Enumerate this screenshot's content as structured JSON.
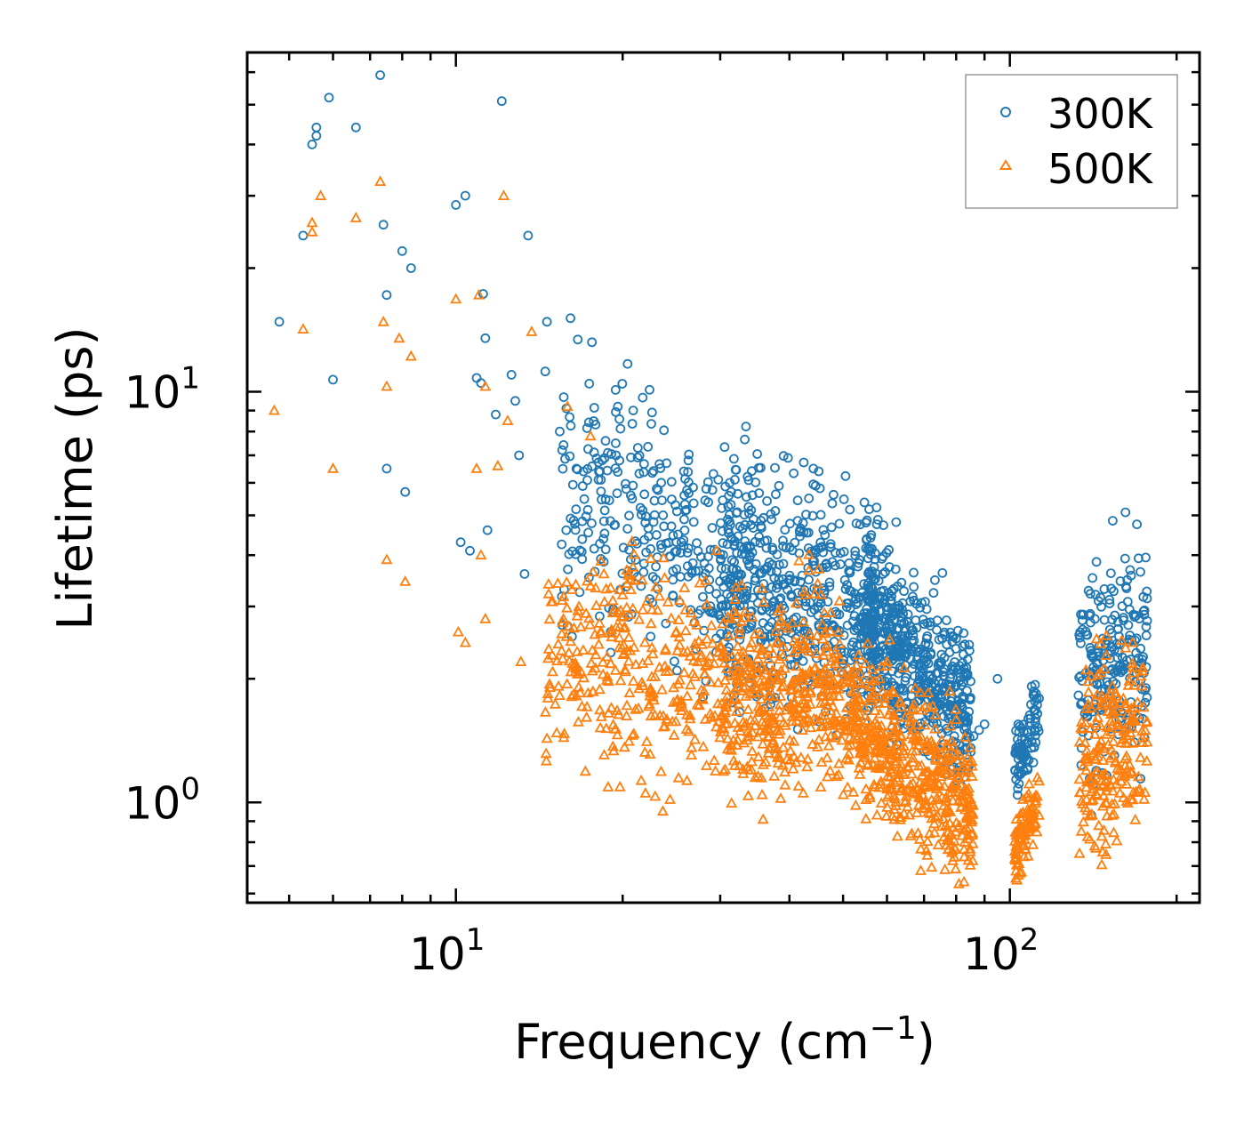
{
  "chart_data": {
    "type": "scatter",
    "xscale": "log",
    "yscale": "log",
    "xlim": [
      4.2,
      220
    ],
    "ylim": [
      0.57,
      67
    ],
    "xlabel": "Frequency (cm",
    "xlabel_sup": "−1",
    "xlabel_end": ")",
    "ylabel": "Lifetime (ps)",
    "x_ticks": [
      {
        "value": 10,
        "base": "10",
        "exp": "1"
      },
      {
        "value": 100,
        "base": "10",
        "exp": "2"
      }
    ],
    "y_ticks": [
      {
        "value": 1,
        "base": "10",
        "exp": "0"
      },
      {
        "value": 10,
        "base": "10",
        "exp": "1"
      }
    ],
    "legend_position": "top-right",
    "grid": false,
    "series": [
      {
        "name": "300K",
        "marker": "circle",
        "color": "#1f77b4",
        "points": [
          [
            4.8,
            14.8
          ],
          [
            5.5,
            40
          ],
          [
            5.6,
            44
          ],
          [
            5.6,
            42
          ],
          [
            5.3,
            24
          ],
          [
            5.9,
            52
          ],
          [
            6.0,
            10.7
          ],
          [
            6.6,
            44
          ],
          [
            7.3,
            59
          ],
          [
            7.4,
            25.5
          ],
          [
            7.5,
            17.2
          ],
          [
            7.5,
            6.5
          ],
          [
            8.0,
            22
          ],
          [
            8.1,
            5.7
          ],
          [
            8.3,
            20
          ],
          [
            10.0,
            28.5
          ],
          [
            10.4,
            30
          ],
          [
            10.6,
            4.1
          ],
          [
            10.2,
            4.3
          ],
          [
            10.9,
            10.8
          ],
          [
            11.1,
            10.5
          ],
          [
            11.2,
            17.3
          ],
          [
            11.3,
            13.5
          ],
          [
            11.4,
            4.6
          ],
          [
            11.8,
            8.8
          ],
          [
            12.1,
            51
          ],
          [
            12.6,
            11.0
          ],
          [
            12.8,
            9.5
          ],
          [
            13.0,
            7.0
          ],
          [
            13.5,
            24
          ],
          [
            13.3,
            3.6
          ],
          [
            14.5,
            11.2
          ],
          [
            14.6,
            14.8
          ],
          [
            15.4,
            8.0
          ],
          [
            16.1,
            15.1
          ],
          [
            16.5,
            6.5
          ],
          [
            16.6,
            13.4
          ],
          [
            17.6,
            13.2
          ],
          [
            18.2,
            6.4
          ],
          [
            18.8,
            7.1
          ],
          [
            19.6,
            9.2
          ],
          [
            20.9,
            9.0
          ],
          [
            21.3,
            7.3
          ],
          [
            22.6,
            8.9
          ],
          [
            24.0,
            6.7
          ],
          [
            25.8,
            6.4
          ],
          [
            28.3,
            5.8
          ],
          [
            31.2,
            6.0
          ],
          [
            34.3,
            5.6
          ],
          [
            38.3,
            5.9
          ],
          [
            44.2,
            6.5
          ],
          [
            45.2,
            6.4
          ],
          [
            55.0,
            4.8
          ],
          [
            59.0,
            3.6
          ],
          [
            86,
            1.45
          ],
          [
            88,
            1.5
          ],
          [
            90,
            1.55
          ],
          [
            95,
            2.0
          ]
        ],
        "clusters": [
          {
            "x_min": 15.5,
            "x_max": 34,
            "y_start": 5.5,
            "y_end": 3.8,
            "spread": 0.32,
            "count": 320
          },
          {
            "x_min": 30,
            "x_max": 58,
            "y_start": 3.4,
            "y_end": 2.9,
            "spread": 0.3,
            "count": 520
          },
          {
            "x_min": 55,
            "x_max": 85,
            "y_start": 2.9,
            "y_end": 1.65,
            "spread": 0.22,
            "count": 520
          },
          {
            "x_min": 102,
            "x_max": 113,
            "y_start": 1.2,
            "y_end": 1.75,
            "spread": 0.1,
            "count": 90
          },
          {
            "x_min": 133,
            "x_max": 177,
            "y_start": 1.9,
            "y_end": 2.4,
            "spread": 0.28,
            "count": 220
          }
        ]
      },
      {
        "name": "500K",
        "marker": "triangle",
        "color": "#ff7f0e",
        "points": [
          [
            4.7,
            9.0
          ],
          [
            5.3,
            14.2
          ],
          [
            5.5,
            24.5
          ],
          [
            5.5,
            25.8
          ],
          [
            5.7,
            30
          ],
          [
            6.0,
            6.5
          ],
          [
            6.6,
            26.5
          ],
          [
            7.3,
            32.5
          ],
          [
            7.4,
            14.8
          ],
          [
            7.5,
            10.3
          ],
          [
            7.5,
            3.9
          ],
          [
            7.9,
            13.5
          ],
          [
            8.1,
            3.45
          ],
          [
            8.3,
            12.2
          ],
          [
            10.0,
            16.8
          ],
          [
            10.1,
            2.6
          ],
          [
            10.4,
            2.45
          ],
          [
            10.9,
            6.5
          ],
          [
            11.0,
            17.2
          ],
          [
            11.1,
            4.0
          ],
          [
            11.3,
            2.8
          ],
          [
            11.3,
            10.3
          ],
          [
            11.9,
            6.6
          ],
          [
            12.2,
            30
          ],
          [
            12.4,
            8.5
          ],
          [
            13.1,
            2.2
          ],
          [
            13.7,
            14.0
          ],
          [
            14.7,
            3.4
          ],
          [
            15.9,
            9.2
          ],
          [
            17.5,
            7.8
          ],
          [
            18.5,
            3.6
          ],
          [
            19.2,
            3.1
          ],
          [
            20.0,
            3.2
          ],
          [
            38.0,
            1.35
          ],
          [
            42.0,
            2.5
          ],
          [
            45.2,
            3.7
          ],
          [
            60.0,
            2.2
          ]
        ],
        "clusters": [
          {
            "x_min": 14.5,
            "x_max": 30,
            "y_start": 2.3,
            "y_end": 2.0,
            "spread": 0.3,
            "count": 320
          },
          {
            "x_min": 30,
            "x_max": 50,
            "y_start": 1.85,
            "y_end": 1.85,
            "spread": 0.26,
            "count": 420
          },
          {
            "x_min": 50,
            "x_max": 86,
            "y_start": 1.6,
            "y_end": 0.97,
            "spread": 0.2,
            "count": 520
          },
          {
            "x_min": 102,
            "x_max": 113,
            "y_start": 0.75,
            "y_end": 1.0,
            "spread": 0.1,
            "count": 90
          },
          {
            "x_min": 133,
            "x_max": 177,
            "y_start": 1.2,
            "y_end": 1.55,
            "spread": 0.26,
            "count": 220
          }
        ]
      }
    ]
  }
}
